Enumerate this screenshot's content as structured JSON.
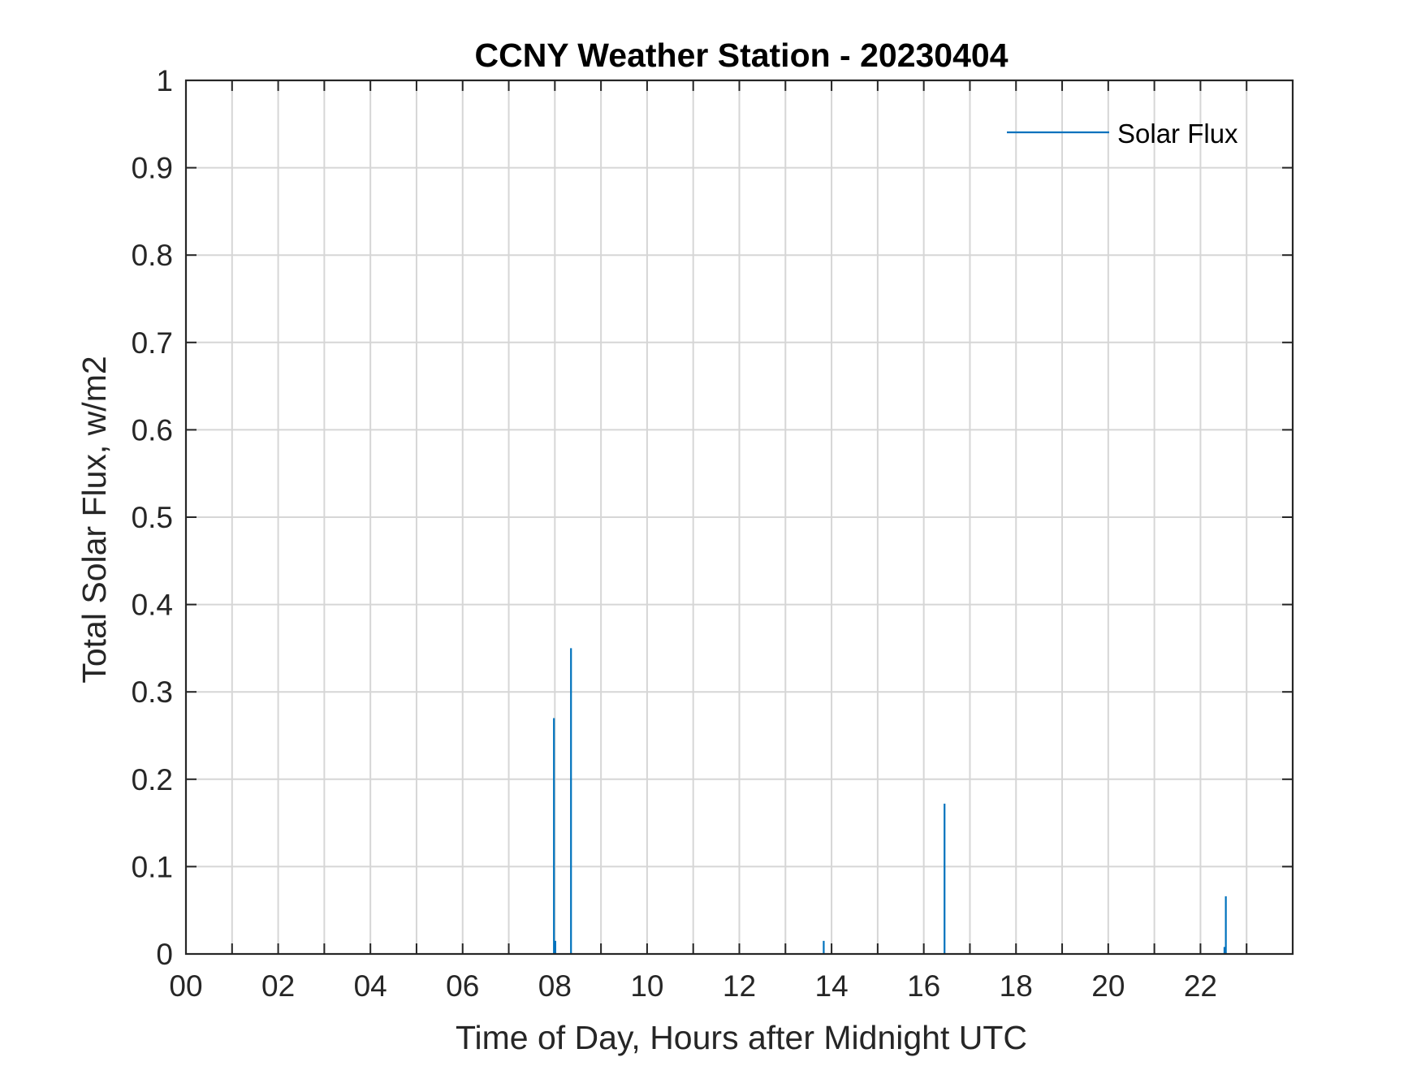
{
  "chart_data": {
    "type": "line",
    "title": "CCNY Weather Station - 20230404",
    "xlabel": "Time of Day, Hours after Midnight UTC",
    "ylabel": "Total Solar Flux, w/m2",
    "xlim": [
      0,
      24
    ],
    "ylim": [
      0,
      1
    ],
    "x_ticks": [
      "00",
      "02",
      "04",
      "06",
      "08",
      "10",
      "12",
      "14",
      "16",
      "18",
      "20",
      "22"
    ],
    "x_tick_values": [
      0,
      2,
      4,
      6,
      8,
      10,
      12,
      14,
      16,
      18,
      20,
      22
    ],
    "y_ticks": [
      "0",
      "0.1",
      "0.2",
      "0.3",
      "0.4",
      "0.5",
      "0.6",
      "0.7",
      "0.8",
      "0.9",
      "1"
    ],
    "y_tick_values": [
      0,
      0.1,
      0.2,
      0.3,
      0.4,
      0.5,
      0.6,
      0.7,
      0.8,
      0.9,
      1
    ],
    "grid": true,
    "grid_x_step": 1,
    "grid_y_step": 0.1,
    "legend_position": "top-right",
    "series": [
      {
        "name": "Solar Flux",
        "color": "#0072BD",
        "spikes": [
          {
            "x": 7.98,
            "y": 0.27
          },
          {
            "x": 8.01,
            "y": 0.015
          },
          {
            "x": 8.35,
            "y": 0.35
          },
          {
            "x": 13.83,
            "y": 0.015
          },
          {
            "x": 16.45,
            "y": 0.172
          },
          {
            "x": 22.52,
            "y": 0.008
          },
          {
            "x": 22.55,
            "y": 0.066
          }
        ]
      }
    ]
  }
}
